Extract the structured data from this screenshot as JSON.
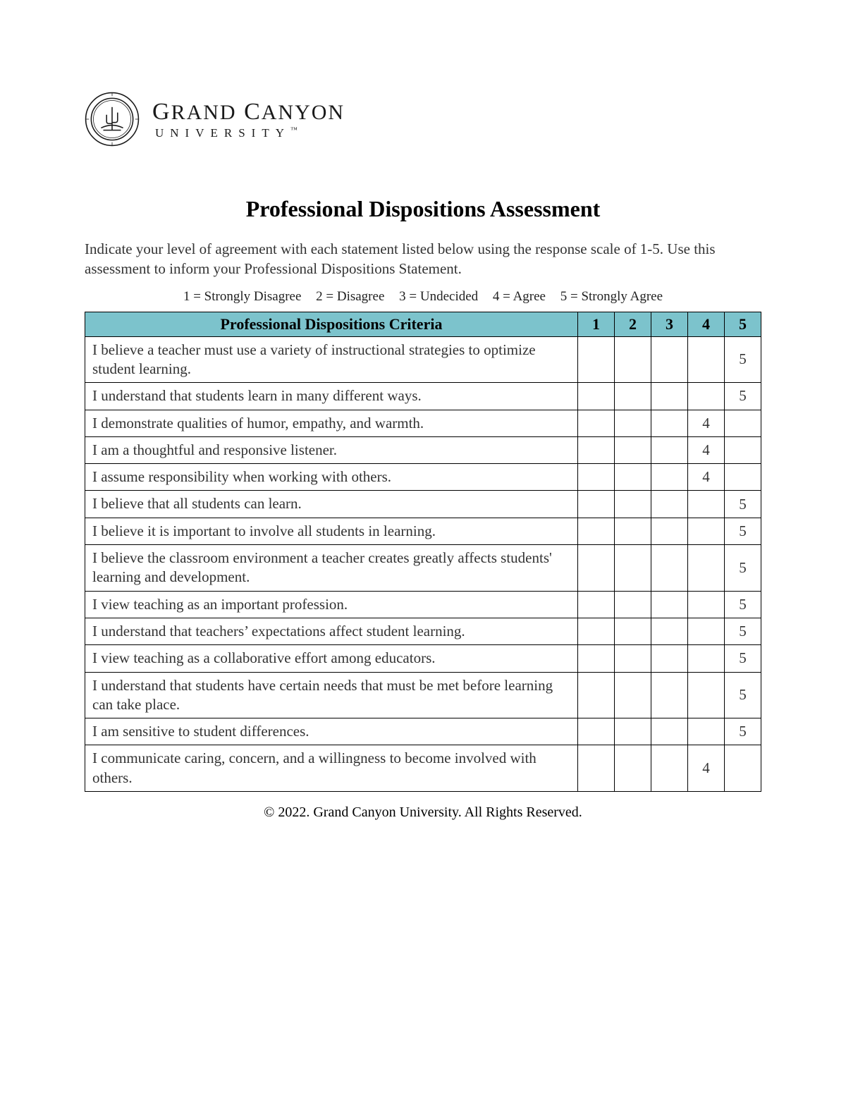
{
  "logo": {
    "main_line": "GRAND CANYON",
    "sub_line": "UNIVERSITY",
    "tm": "™",
    "seal_stroke": "#1a1a1a",
    "seal_text_top": "GRAND CANYON UNIVERSITY",
    "seal_text_bottom": "ARIZONA 1949"
  },
  "title": "Professional Dispositions Assessment",
  "instructions": "Indicate your level of agreement with each statement listed below using the response scale of 1-5. Use this assessment to inform your Professional Dispositions Statement.",
  "scale_legend": [
    "1 = Strongly Disagree",
    "2 = Disagree",
    "3 = Undecided",
    "4 = Agree",
    "5 = Strongly Agree"
  ],
  "table": {
    "header_bg": "#7cc3cc",
    "border_color": "#000000",
    "criteria_header": "Professional Dispositions Criteria",
    "score_headers": [
      "1",
      "2",
      "3",
      "4",
      "5"
    ],
    "rows": [
      {
        "criterion": "I believe a teacher must use a variety of instructional strategies to optimize student learning.",
        "scores": [
          "",
          "",
          "",
          "",
          "5"
        ]
      },
      {
        "criterion": "I understand that students learn in many different ways.",
        "scores": [
          "",
          "",
          "",
          "",
          "5"
        ]
      },
      {
        "criterion": "I demonstrate qualities of humor, empathy, and warmth.",
        "scores": [
          "",
          "",
          "",
          "4",
          ""
        ]
      },
      {
        "criterion": "I am a thoughtful and responsive listener.",
        "scores": [
          "",
          "",
          "",
          "4",
          ""
        ]
      },
      {
        "criterion": "I assume responsibility when working with others.",
        "scores": [
          "",
          "",
          "",
          "4",
          ""
        ]
      },
      {
        "criterion": "I believe that all students can learn.",
        "scores": [
          "",
          "",
          "",
          "",
          "5"
        ]
      },
      {
        "criterion": "I believe it is important to involve all students in learning.",
        "scores": [
          "",
          "",
          "",
          "",
          "5"
        ]
      },
      {
        "criterion": "I believe the classroom environment a teacher creates greatly affects students' learning and development.",
        "scores": [
          "",
          "",
          "",
          "",
          "5"
        ]
      },
      {
        "criterion": "I view teaching as an important profession.",
        "scores": [
          "",
          "",
          "",
          "",
          "5"
        ]
      },
      {
        "criterion": "I understand that teachers’ expectations affect student learning.",
        "scores": [
          "",
          "",
          "",
          "",
          "5"
        ]
      },
      {
        "criterion": "I view teaching as a collaborative effort among educators.",
        "scores": [
          "",
          "",
          "",
          "",
          "5"
        ]
      },
      {
        "criterion": "I understand that students have certain needs that must be met before learning can take place.",
        "scores": [
          "",
          "",
          "",
          "",
          "5"
        ]
      },
      {
        "criterion": "I am sensitive to student differences.",
        "scores": [
          "",
          "",
          "",
          "",
          "5"
        ]
      },
      {
        "criterion": "I communicate caring, concern, and a willingness to become involved with others.",
        "scores": [
          "",
          "",
          "",
          "4",
          ""
        ]
      }
    ]
  },
  "footer": "© 2022. Grand Canyon University. All Rights Reserved."
}
